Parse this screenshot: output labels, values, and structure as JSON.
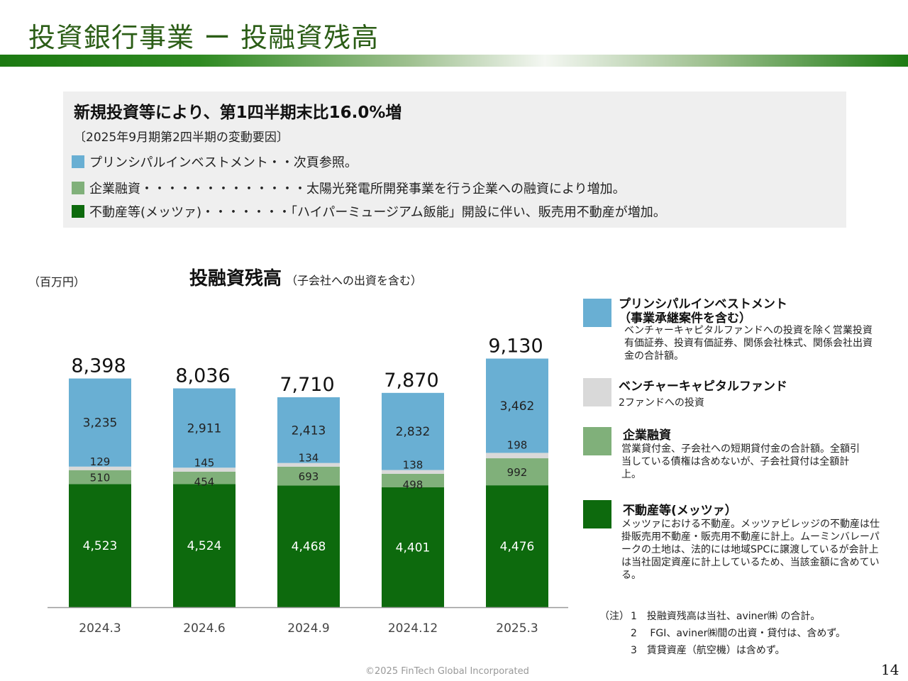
{
  "header": {
    "title": "投資銀行事業 ー 投融資残高"
  },
  "summary": {
    "headline": "新規投資等により、第1四半期末比16.0%増",
    "period": "〔2025年9月期第2四半期の変動要因〕",
    "items": [
      {
        "text": "プリンシパルインベストメント・・次頁参照。",
        "color": "#69afd3"
      },
      {
        "text": "企業融資・・・・・・・・・・・・・太陽光発電所開発事業を行う企業への融資により増加。",
        "color": "#80b07a"
      },
      {
        "text": "不動産等(メッツァ)・・・・・・・「ハイパーミュージアム飯能」開設に伴い、販売用不動産が増加。",
        "color": "#0d6a0d"
      }
    ]
  },
  "chart_header": {
    "unit": "（百万円）",
    "title": "投融資残高",
    "subtitle": "（子会社への出資を含む）"
  },
  "chart_data": {
    "type": "bar",
    "stacked": true,
    "categories": [
      "2024.3",
      "2024.6",
      "2024.9",
      "2024.12",
      "2025.3"
    ],
    "totals": [
      "8,398",
      "8,036",
      "7,710",
      "7,870",
      "9,130"
    ],
    "series": [
      {
        "name": "不動産等(メッツァ)",
        "values": [
          4523,
          4524,
          4468,
          4401,
          4476
        ],
        "labels": [
          "4,523",
          "4,524",
          "4,468",
          "4,401",
          "4,476"
        ],
        "color": "#0d6a0d"
      },
      {
        "name": "企業融資",
        "values": [
          510,
          454,
          693,
          498,
          992
        ],
        "labels": [
          "510",
          "454",
          "693",
          "498",
          "992"
        ],
        "color": "#80b07a"
      },
      {
        "name": "ベンチャーキャピタルファンド",
        "values": [
          129,
          145,
          134,
          138,
          198
        ],
        "labels": [
          "129",
          "145",
          "134",
          "138",
          "198"
        ],
        "color": "#d9d9d9"
      },
      {
        "name": "プリンシパルインベストメント（事業承継案件を含む）",
        "values": [
          3235,
          2911,
          2413,
          2832,
          3462
        ],
        "labels": [
          "3,235",
          "2,911",
          "2,413",
          "2,832",
          "3,462"
        ],
        "color": "#69afd3"
      }
    ],
    "ylim": [
      0,
      10000
    ],
    "grid": false,
    "legend": "right"
  },
  "legend": [
    {
      "title": "プリンシパルインベストメント",
      "title2": "（事業承継案件を含む）",
      "desc": "ベンチャーキャピタルファンドへの投資を除く営業投資有価証券、投資有価証券、関係会社株式、関係会社出資金の合計額。",
      "color": "#69afd3"
    },
    {
      "title": "ベンチャーキャピタルファンド",
      "desc": "2ファンドへの投資",
      "color": "#d9d9d9"
    },
    {
      "title": "企業融資",
      "desc": "営業貸付金、子会社への短期貸付金の合計額。全額引当している債権は含めないが、子会社貸付は全額計上。",
      "color": "#80b07a"
    },
    {
      "title": "不動産等(メッツァ）",
      "desc": "メッツァにおける不動産。メッツァビレッジの不動産は仕掛販売用不動産・販売用不動産に計上。ムーミンバレーパークの土地は、法的には地域SPCに譲渡しているが会計上は当社固定資産に計上しているため、当該金額に含めている。",
      "color": "#0d6a0d"
    }
  ],
  "notes": {
    "label": "（注）",
    "items": [
      "1　投融資残高は当社、aviner㈱ の合計。",
      "2　 FGI、aviner㈱間の出資・貸付は、含めず。",
      "3　賃貸資産（航空機）は含めず。"
    ]
  },
  "footer": {
    "copyright": "©2025 FinTech Global Incorporated",
    "page": "14"
  }
}
